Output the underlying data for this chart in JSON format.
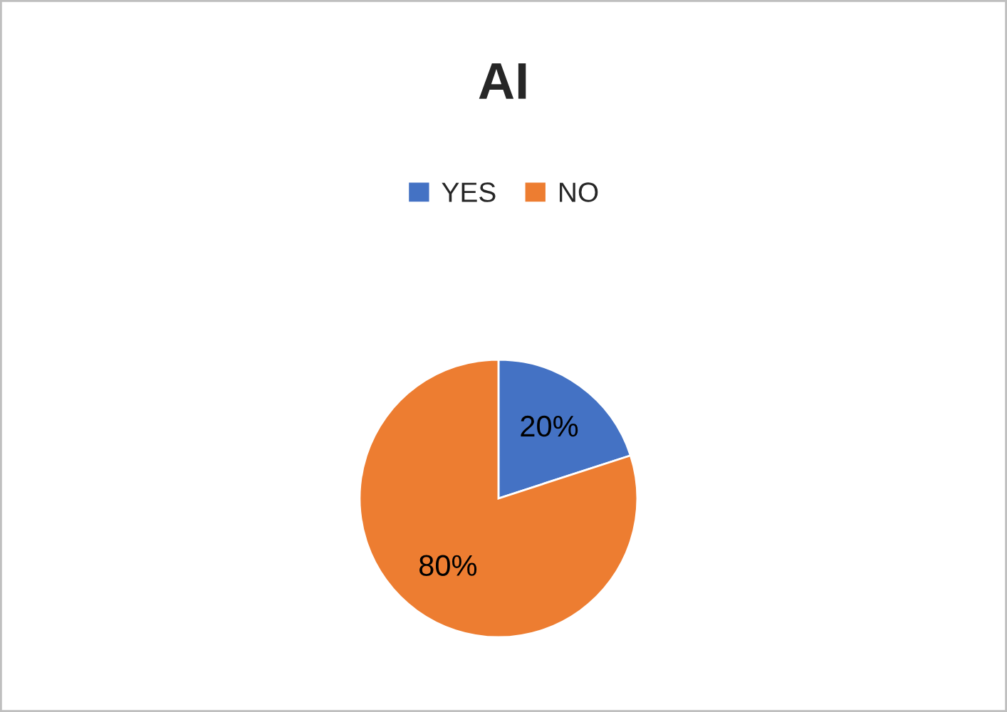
{
  "chart_data": {
    "type": "pie",
    "title": "AI",
    "categories": [
      "YES",
      "NO"
    ],
    "values": [
      20,
      80
    ],
    "colors": [
      "#4472c4",
      "#ed7d31"
    ],
    "value_labels": [
      "20%",
      "80%"
    ],
    "legend": "top"
  }
}
